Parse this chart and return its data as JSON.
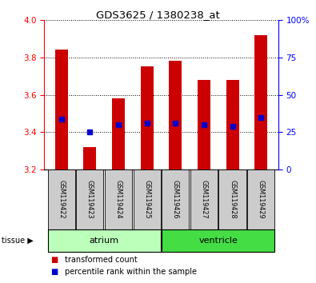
{
  "title": "GDS3625 / 1380238_at",
  "samples": [
    "GSM119422",
    "GSM119423",
    "GSM119424",
    "GSM119425",
    "GSM119426",
    "GSM119427",
    "GSM119428",
    "GSM119429"
  ],
  "bar_tops": [
    3.84,
    3.32,
    3.58,
    3.75,
    3.78,
    3.68,
    3.68,
    3.92
  ],
  "bar_base": 3.2,
  "blue_vals": [
    3.47,
    3.4,
    3.44,
    3.45,
    3.45,
    3.44,
    3.43,
    3.48
  ],
  "ylim_left": [
    3.2,
    4.0
  ],
  "ylim_right": [
    0,
    100
  ],
  "yticks_left": [
    3.2,
    3.4,
    3.6,
    3.8,
    4.0
  ],
  "yticks_right": [
    0,
    25,
    50,
    75,
    100
  ],
  "ytick_labels_right": [
    "0",
    "25",
    "50",
    "75",
    "100%"
  ],
  "bar_color": "#cc0000",
  "blue_color": "#0000cc",
  "tissue_groups": [
    {
      "label": "atrium",
      "samples": [
        0,
        1,
        2,
        3
      ],
      "color": "#bbffbb"
    },
    {
      "label": "ventricle",
      "samples": [
        4,
        5,
        6,
        7
      ],
      "color": "#44dd44"
    }
  ],
  "legend_items": [
    {
      "label": "transformed count",
      "color": "#cc0000"
    },
    {
      "label": "percentile rank within the sample",
      "color": "#0000cc"
    }
  ],
  "bar_width": 0.45,
  "sample_bg_color": "#cccccc",
  "tissue_label": "tissue"
}
